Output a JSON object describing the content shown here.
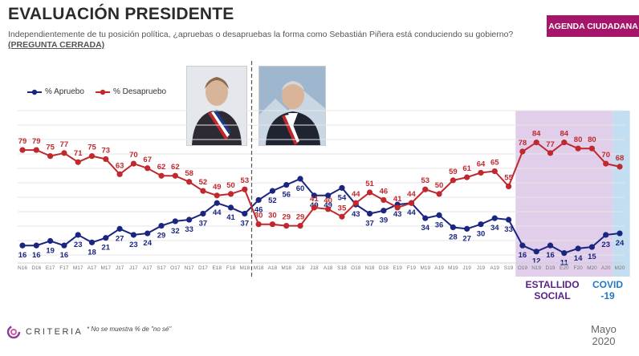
{
  "header": {
    "title": "EVALUACIÓN PRESIDENTE",
    "subtitle": "Independientemente de tu posición política, ¿apruebas o desapruebas la forma como Sebastián Piñera está conduciendo su gobierno?",
    "subtitle_tag": "(PREGUNTA CERRADA)",
    "badge": "AGENDA CIUDADANA"
  },
  "legend": {
    "aprueba": "% Apruebo",
    "desaprueba": "% Desapruebo"
  },
  "bands": {
    "estallido": "ESTALLIDO SOCIAL",
    "covid": "COVID -19"
  },
  "footer": {
    "brand": "CRITERIA",
    "footnote": "* No se muestra % de \"no sé\"",
    "date": "Mayo 2020"
  },
  "chart_data": {
    "type": "line",
    "categories": [
      "N16",
      "D16",
      "E17",
      "F17",
      "M17",
      "A17",
      "M17",
      "J17",
      "J17",
      "A17",
      "S17",
      "O17",
      "N17",
      "D17",
      "E18",
      "F18",
      "M18",
      "M18",
      "A18",
      "M18",
      "J18",
      "J18",
      "A18",
      "S18",
      "O18",
      "N18",
      "D18",
      "E19",
      "F19",
      "M19",
      "A19",
      "M19",
      "J19",
      "J19",
      "A19",
      "S19",
      "O19",
      "N19",
      "D19",
      "E20",
      "F20",
      "M20",
      "A20",
      "M20"
    ],
    "series": [
      {
        "name": "% Apruebo",
        "color": "#1a2580",
        "values": [
          16,
          16,
          19,
          16,
          23,
          18,
          21,
          27,
          23,
          24,
          29,
          32,
          33,
          37,
          44,
          41,
          37,
          46,
          52,
          56,
          60,
          49,
          49,
          54,
          43,
          37,
          39,
          43,
          44,
          34,
          36,
          28,
          27,
          30,
          34,
          33,
          16,
          12,
          16,
          11,
          14,
          15,
          23,
          24
        ]
      },
      {
        "name": "% Desapruebo",
        "color": "#c0282d",
        "values": [
          79,
          79,
          75,
          77,
          71,
          75,
          73,
          63,
          70,
          67,
          62,
          62,
          58,
          52,
          49,
          50,
          53,
          30,
          30,
          29,
          29,
          41,
          40,
          35,
          44,
          51,
          46,
          41,
          44,
          53,
          50,
          59,
          61,
          64,
          65,
          55,
          78,
          84,
          77,
          84,
          80,
          80,
          70,
          68
        ]
      }
    ],
    "markers": {
      "divider_after": "M18",
      "estallido_start": "O19",
      "covid_start": "M20"
    },
    "ylim": [
      0,
      100
    ]
  }
}
